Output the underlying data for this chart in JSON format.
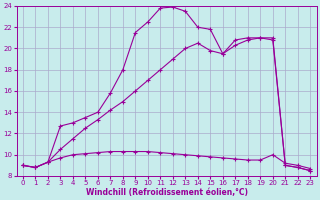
{
  "background_color": "#c8ecec",
  "grid_color": "#aaaacc",
  "line_color": "#990099",
  "xlabel": "Windchill (Refroidissement éolien,°C)",
  "xlim": [
    -0.5,
    23.5
  ],
  "ylim": [
    8,
    24
  ],
  "yticks": [
    8,
    10,
    12,
    14,
    16,
    18,
    20,
    22,
    24
  ],
  "xticks": [
    0,
    1,
    2,
    3,
    4,
    5,
    6,
    7,
    8,
    9,
    10,
    11,
    12,
    13,
    14,
    15,
    16,
    17,
    18,
    19,
    20,
    21,
    22,
    23
  ],
  "curve1_x": [
    0,
    1,
    2,
    3,
    4,
    5,
    6,
    7,
    8,
    9,
    10,
    11,
    12,
    13,
    14,
    15,
    16,
    17,
    18,
    19,
    20,
    21,
    22,
    23
  ],
  "curve1_y": [
    9.0,
    8.8,
    9.3,
    12.7,
    13.0,
    13.5,
    14.0,
    15.8,
    18.0,
    21.5,
    22.5,
    23.8,
    23.9,
    23.5,
    22.0,
    21.8,
    19.5,
    20.8,
    21.0,
    21.0,
    20.8,
    9.0,
    8.8,
    8.5
  ],
  "curve2_x": [
    0,
    1,
    2,
    3,
    4,
    5,
    6,
    7,
    8,
    9,
    10,
    11,
    12,
    13,
    14,
    15,
    16,
    17,
    18,
    19,
    20,
    21,
    22,
    23
  ],
  "curve2_y": [
    9.0,
    8.8,
    9.3,
    10.5,
    11.5,
    12.5,
    13.3,
    14.2,
    15.0,
    16.0,
    17.0,
    18.0,
    19.0,
    20.0,
    20.5,
    19.8,
    19.5,
    20.3,
    20.8,
    21.0,
    21.0,
    9.0,
    8.8,
    8.5
  ],
  "curve3_x": [
    0,
    1,
    2,
    3,
    4,
    5,
    6,
    7,
    8,
    9,
    10,
    11,
    12,
    13,
    14,
    15,
    16,
    17,
    18,
    19,
    20,
    21,
    22,
    23
  ],
  "curve3_y": [
    9.0,
    8.8,
    9.3,
    9.7,
    10.0,
    10.1,
    10.2,
    10.3,
    10.3,
    10.3,
    10.3,
    10.2,
    10.1,
    10.0,
    9.9,
    9.8,
    9.7,
    9.6,
    9.5,
    9.5,
    10.0,
    9.2,
    9.0,
    8.7
  ],
  "title_color": "#990099",
  "font_size_ticks": 5,
  "font_size_xlabel": 5.5
}
